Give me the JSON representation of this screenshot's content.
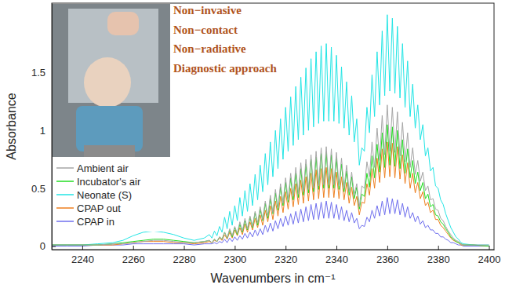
{
  "chart_data": {
    "type": "line",
    "xlabel": "Wavenumbers in cm⁻¹",
    "ylabel": "Absorbance",
    "annotations": [
      "Non−invasive",
      "Non−contact",
      "Non−radiative",
      "Diagnostic approach"
    ],
    "xlim": [
      2228,
      2402
    ],
    "ylim": [
      -0.03,
      2.1
    ],
    "xticks": [
      2240,
      2260,
      2280,
      2300,
      2320,
      2340,
      2360,
      2380,
      2400
    ],
    "yticks": [
      0,
      0.5,
      1,
      1.5
    ],
    "grid": false,
    "legend": "upper left",
    "x": [
      2228,
      2234,
      2240,
      2246,
      2252,
      2256,
      2260,
      2264,
      2268,
      2272,
      2276,
      2280,
      2284,
      2288,
      2290,
      2291,
      2292,
      2293,
      2294,
      2295,
      2296,
      2297,
      2298,
      2299,
      2300,
      2301,
      2302,
      2303,
      2304,
      2305,
      2306,
      2307,
      2308,
      2309,
      2310,
      2311,
      2312,
      2313,
      2314,
      2315,
      2316,
      2317,
      2318,
      2319,
      2320,
      2321,
      2322,
      2323,
      2324,
      2325,
      2326,
      2327,
      2328,
      2329,
      2330,
      2331,
      2332,
      2333,
      2334,
      2335,
      2336,
      2337,
      2338,
      2339,
      2340,
      2341,
      2342,
      2343,
      2344,
      2345,
      2346,
      2347,
      2348,
      2349,
      2350,
      2351,
      2352,
      2353,
      2354,
      2355,
      2356,
      2357,
      2358,
      2359,
      2360,
      2361,
      2362,
      2363,
      2364,
      2365,
      2366,
      2367,
      2368,
      2369,
      2370,
      2371,
      2372,
      2373,
      2374,
      2375,
      2376,
      2377,
      2378,
      2379,
      2380,
      2381,
      2382,
      2383,
      2384,
      2385,
      2386,
      2387,
      2388,
      2389,
      2390,
      2394,
      2400
    ],
    "series": [
      {
        "name": "Ambient air",
        "color": "#a6a6a6",
        "values": [
          0.01,
          0.01,
          0.01,
          0.01,
          0.02,
          0.02,
          0.03,
          0.04,
          0.05,
          0.05,
          0.04,
          0.03,
          0.03,
          0.04,
          0.05,
          0.03,
          0.06,
          0.04,
          0.08,
          0.06,
          0.12,
          0.07,
          0.15,
          0.09,
          0.17,
          0.11,
          0.21,
          0.13,
          0.24,
          0.15,
          0.26,
          0.17,
          0.3,
          0.2,
          0.34,
          0.23,
          0.39,
          0.26,
          0.44,
          0.29,
          0.49,
          0.33,
          0.54,
          0.37,
          0.59,
          0.4,
          0.63,
          0.43,
          0.68,
          0.45,
          0.72,
          0.47,
          0.75,
          0.49,
          0.79,
          0.5,
          0.82,
          0.52,
          0.85,
          0.53,
          0.86,
          0.53,
          0.84,
          0.53,
          0.81,
          0.52,
          0.76,
          0.5,
          0.7,
          0.47,
          0.64,
          0.44,
          0.54,
          0.34,
          0.52,
          0.5,
          0.73,
          0.6,
          0.9,
          0.68,
          1.02,
          0.74,
          1.13,
          0.79,
          1.22,
          0.82,
          1.2,
          0.81,
          1.16,
          0.78,
          1.07,
          0.73,
          0.98,
          0.68,
          0.85,
          0.62,
          0.74,
          0.56,
          0.64,
          0.48,
          0.52,
          0.4,
          0.41,
          0.32,
          0.31,
          0.24,
          0.22,
          0.17,
          0.13,
          0.1,
          0.07,
          0.05,
          0.04,
          0.02,
          0.01,
          0.01,
          0.01
        ]
      },
      {
        "name": "Incubator's air",
        "color": "#22dd22",
        "values": [
          0.01,
          0.01,
          0.01,
          0.01,
          0.02,
          0.03,
          0.04,
          0.05,
          0.06,
          0.06,
          0.05,
          0.04,
          0.03,
          0.04,
          0.05,
          0.03,
          0.06,
          0.04,
          0.08,
          0.06,
          0.12,
          0.07,
          0.14,
          0.08,
          0.16,
          0.1,
          0.19,
          0.12,
          0.22,
          0.14,
          0.25,
          0.16,
          0.29,
          0.18,
          0.32,
          0.22,
          0.37,
          0.24,
          0.41,
          0.28,
          0.46,
          0.31,
          0.51,
          0.35,
          0.55,
          0.38,
          0.59,
          0.4,
          0.63,
          0.42,
          0.67,
          0.44,
          0.71,
          0.46,
          0.75,
          0.47,
          0.77,
          0.49,
          0.8,
          0.5,
          0.81,
          0.5,
          0.79,
          0.5,
          0.76,
          0.49,
          0.71,
          0.47,
          0.65,
          0.44,
          0.6,
          0.41,
          0.51,
          0.32,
          0.45,
          0.43,
          0.63,
          0.51,
          0.78,
          0.59,
          0.88,
          0.64,
          0.98,
          0.68,
          1.05,
          0.7,
          1.03,
          0.69,
          1.0,
          0.67,
          0.92,
          0.63,
          0.84,
          0.59,
          0.74,
          0.54,
          0.64,
          0.48,
          0.55,
          0.41,
          0.45,
          0.34,
          0.36,
          0.27,
          0.26,
          0.21,
          0.19,
          0.15,
          0.12,
          0.08,
          0.06,
          0.04,
          0.03,
          0.02,
          0.01,
          0.01,
          0
        ]
      },
      {
        "name": "Neonate (S)",
        "color": "#22e5e5",
        "values": [
          0.01,
          0.01,
          0.01,
          0.02,
          0.03,
          0.05,
          0.09,
          0.12,
          0.13,
          0.12,
          0.1,
          0.07,
          0.05,
          0.07,
          0.1,
          0.07,
          0.13,
          0.09,
          0.17,
          0.12,
          0.25,
          0.15,
          0.3,
          0.18,
          0.35,
          0.22,
          0.42,
          0.26,
          0.48,
          0.3,
          0.54,
          0.35,
          0.62,
          0.4,
          0.7,
          0.47,
          0.8,
          0.53,
          0.9,
          0.6,
          1.0,
          0.67,
          1.1,
          0.75,
          1.2,
          0.82,
          1.29,
          0.87,
          1.38,
          0.92,
          1.46,
          0.96,
          1.54,
          1.0,
          1.62,
          1.03,
          1.68,
          1.06,
          1.73,
          1.08,
          1.75,
          1.08,
          1.72,
          1.08,
          1.65,
          1.06,
          1.55,
          1.02,
          1.42,
          0.96,
          1.3,
          0.9,
          1.1,
          0.7,
          0.85,
          0.82,
          1.2,
          0.98,
          1.48,
          1.12,
          1.68,
          1.22,
          1.86,
          1.3,
          2.0,
          1.34,
          1.97,
          1.32,
          1.9,
          1.28,
          1.75,
          1.2,
          1.6,
          1.12,
          1.4,
          1.02,
          1.22,
          0.92,
          1.05,
          0.78,
          0.85,
          0.65,
          0.68,
          0.52,
          0.5,
          0.4,
          0.36,
          0.28,
          0.22,
          0.16,
          0.12,
          0.08,
          0.06,
          0.03,
          0.02,
          0.01,
          0.01
        ]
      },
      {
        "name": "CPAP out",
        "color": "#ee7f1f",
        "values": [
          0.01,
          0.01,
          0.01,
          0.01,
          0.01,
          0.02,
          0.03,
          0.04,
          0.04,
          0.04,
          0.03,
          0.03,
          0.02,
          0.03,
          0.04,
          0.03,
          0.05,
          0.04,
          0.07,
          0.05,
          0.1,
          0.06,
          0.12,
          0.07,
          0.14,
          0.09,
          0.16,
          0.1,
          0.19,
          0.12,
          0.21,
          0.14,
          0.24,
          0.16,
          0.27,
          0.18,
          0.31,
          0.21,
          0.35,
          0.23,
          0.39,
          0.26,
          0.43,
          0.29,
          0.47,
          0.32,
          0.5,
          0.34,
          0.54,
          0.36,
          0.57,
          0.37,
          0.6,
          0.39,
          0.63,
          0.4,
          0.66,
          0.41,
          0.67,
          0.42,
          0.68,
          0.42,
          0.67,
          0.42,
          0.64,
          0.41,
          0.6,
          0.4,
          0.55,
          0.37,
          0.51,
          0.35,
          0.43,
          0.27,
          0.38,
          0.37,
          0.54,
          0.44,
          0.67,
          0.5,
          0.76,
          0.55,
          0.84,
          0.59,
          0.9,
          0.6,
          0.89,
          0.59,
          0.86,
          0.58,
          0.79,
          0.54,
          0.72,
          0.5,
          0.63,
          0.46,
          0.55,
          0.41,
          0.47,
          0.35,
          0.38,
          0.29,
          0.31,
          0.23,
          0.23,
          0.18,
          0.16,
          0.13,
          0.1,
          0.07,
          0.05,
          0.04,
          0.03,
          0.01,
          0.01,
          0.01,
          0
        ]
      },
      {
        "name": "CPAP in",
        "color": "#6f6fee",
        "values": [
          0,
          0,
          0,
          0.01,
          0.01,
          0.01,
          0.02,
          0.02,
          0.02,
          0.02,
          0.02,
          0.02,
          0.01,
          0.02,
          0.02,
          0.02,
          0.03,
          0.02,
          0.04,
          0.03,
          0.06,
          0.03,
          0.07,
          0.04,
          0.08,
          0.05,
          0.09,
          0.06,
          0.11,
          0.07,
          0.12,
          0.08,
          0.14,
          0.09,
          0.15,
          0.1,
          0.18,
          0.12,
          0.2,
          0.13,
          0.22,
          0.15,
          0.24,
          0.17,
          0.26,
          0.18,
          0.28,
          0.19,
          0.3,
          0.2,
          0.32,
          0.21,
          0.34,
          0.22,
          0.36,
          0.23,
          0.37,
          0.23,
          0.38,
          0.24,
          0.39,
          0.24,
          0.38,
          0.24,
          0.36,
          0.23,
          0.34,
          0.22,
          0.31,
          0.21,
          0.29,
          0.2,
          0.24,
          0.15,
          0.18,
          0.17,
          0.25,
          0.21,
          0.31,
          0.24,
          0.35,
          0.26,
          0.39,
          0.27,
          0.42,
          0.28,
          0.41,
          0.28,
          0.4,
          0.27,
          0.37,
          0.25,
          0.34,
          0.24,
          0.29,
          0.21,
          0.26,
          0.19,
          0.22,
          0.16,
          0.18,
          0.14,
          0.14,
          0.11,
          0.11,
          0.08,
          0.08,
          0.06,
          0.05,
          0.03,
          0.03,
          0.02,
          0.01,
          0.01,
          0,
          0,
          0
        ]
      }
    ]
  }
}
